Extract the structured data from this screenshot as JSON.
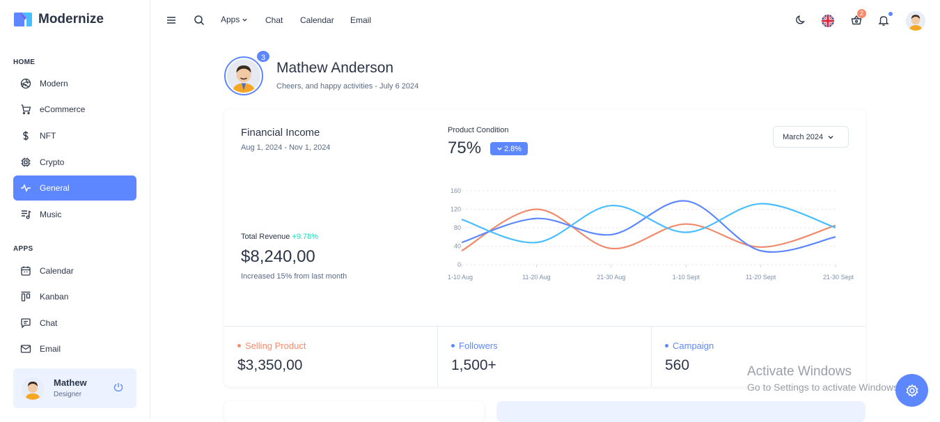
{
  "brand": {
    "name": "Modernize"
  },
  "sidebar": {
    "home_caption": "HOME",
    "apps_caption": "APPS",
    "home_items": [
      {
        "label": "Modern",
        "icon": "aperture-icon"
      },
      {
        "label": "eCommerce",
        "icon": "cart-icon"
      },
      {
        "label": "NFT",
        "icon": "dollar-icon"
      },
      {
        "label": "Crypto",
        "icon": "cpu-icon"
      },
      {
        "label": "General",
        "icon": "activity-icon",
        "active": true
      },
      {
        "label": "Music",
        "icon": "playlist-icon"
      }
    ],
    "app_items": [
      {
        "label": "Calendar",
        "icon": "calendar-icon"
      },
      {
        "label": "Kanban",
        "icon": "kanban-icon"
      },
      {
        "label": "Chat",
        "icon": "message-icon"
      },
      {
        "label": "Email",
        "icon": "mail-icon"
      }
    ],
    "profile": {
      "name": "Mathew",
      "role": "Designer"
    }
  },
  "topbar": {
    "apps_label": "Apps",
    "links": [
      "Chat",
      "Calendar",
      "Email"
    ],
    "cart_count": "2"
  },
  "welcome": {
    "badge": "3",
    "name": "Mathew Anderson",
    "subtitle": "Cheers, and happy activities - July 6 2024"
  },
  "financial": {
    "title": "Financial Income",
    "range": "Aug 1, 2024 - Nov 1, 2024",
    "total_revenue_label": "Total Revenue",
    "total_revenue_change": "+9.78%",
    "total_revenue_value": "$8,240,00",
    "note": "Increased 15% from last month"
  },
  "product_condition": {
    "title": "Product Condition",
    "value": "75%",
    "badge": "2.8%",
    "period_select": "March 2024"
  },
  "chart_data": {
    "type": "line",
    "categories": [
      "1-10 Aug",
      "11-20 Aug",
      "21-30 Aug",
      "1-10 Sept",
      "11-20 Sept",
      "21-30 Sept"
    ],
    "ylim": [
      0,
      160
    ],
    "yticks": [
      0,
      40,
      80,
      120,
      160
    ],
    "grid": true,
    "series": [
      {
        "color": "#f08a6c",
        "values": [
          30,
          120,
          35,
          88,
          38,
          85
        ]
      },
      {
        "color": "#5d87ff",
        "values": [
          48,
          100,
          65,
          138,
          30,
          60
        ]
      },
      {
        "color": "#49beff",
        "values": [
          98,
          48,
          128,
          70,
          132,
          80
        ]
      }
    ]
  },
  "stats": [
    {
      "label": "Selling Product",
      "value": "$3,350,00",
      "color": "#fa896b"
    },
    {
      "label": "Followers",
      "value": "1,500+",
      "color": "#5d87ff"
    },
    {
      "label": "Campaign",
      "value": "560",
      "color": "#5d87ff"
    }
  ],
  "watermark": {
    "line1": "Activate Windows",
    "line2": "Go to Settings to activate Windows."
  }
}
